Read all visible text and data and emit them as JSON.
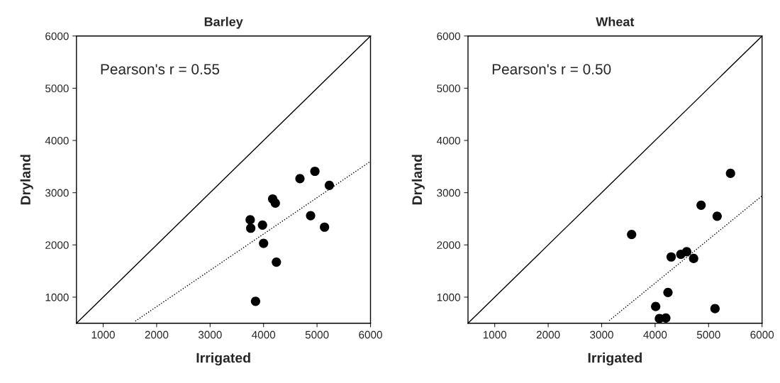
{
  "chart_data": [
    {
      "type": "scatter",
      "title": "Barley",
      "xlabel": "Irrigated",
      "ylabel": "Dryland",
      "xlim": [
        500,
        6000
      ],
      "ylim": [
        500,
        6000
      ],
      "xticks": [
        1000,
        2000,
        3000,
        4000,
        5000,
        6000
      ],
      "yticks": [
        1000,
        2000,
        3000,
        4000,
        5000,
        6000
      ],
      "annotations": [
        "Pearson's r = 0.55"
      ],
      "series": [
        {
          "marker": "circle",
          "color": "#000000",
          "x": [
            3750,
            3760,
            3980,
            4000,
            4170,
            4220,
            4240,
            3850,
            4680,
            4960,
            5230,
            4880,
            5140
          ],
          "values": [
            2480,
            2320,
            2380,
            2030,
            2880,
            2800,
            1670,
            920,
            3270,
            3410,
            3140,
            2560,
            2340
          ]
        },
        {
          "type": "line",
          "marker": "none",
          "color": "#000000",
          "line_style": "solid",
          "x": [
            500,
            6000
          ],
          "values": [
            500,
            6000
          ]
        },
        {
          "type": "line",
          "marker": "none",
          "color": "#000000",
          "line_style": "dotted",
          "x": [
            1600,
            6000
          ],
          "values": [
            540,
            3600
          ]
        }
      ]
    },
    {
      "type": "scatter",
      "title": "Wheat",
      "xlabel": "Irrigated",
      "ylabel": "Dryland",
      "xlim": [
        500,
        6000
      ],
      "ylim": [
        500,
        6000
      ],
      "xticks": [
        1000,
        2000,
        3000,
        4000,
        5000,
        6000
      ],
      "yticks": [
        1000,
        2000,
        3000,
        4000,
        5000,
        6000
      ],
      "annotations": [
        "Pearson's r = 0.50"
      ],
      "series": [
        {
          "marker": "circle",
          "color": "#000000",
          "x": [
            3560,
            4300,
            4480,
            4590,
            4720,
            4240,
            4010,
            4080,
            4200,
            5120,
            4860,
            5160,
            5410
          ],
          "values": [
            2200,
            1770,
            1820,
            1870,
            1740,
            1090,
            820,
            590,
            600,
            780,
            2760,
            2550,
            3370
          ]
        },
        {
          "type": "line",
          "marker": "none",
          "color": "#000000",
          "line_style": "solid",
          "x": [
            500,
            6000
          ],
          "values": [
            500,
            6000
          ]
        },
        {
          "type": "line",
          "marker": "none",
          "color": "#000000",
          "line_style": "dotted",
          "x": [
            3140,
            6000
          ],
          "values": [
            550,
            2940
          ]
        }
      ]
    }
  ]
}
